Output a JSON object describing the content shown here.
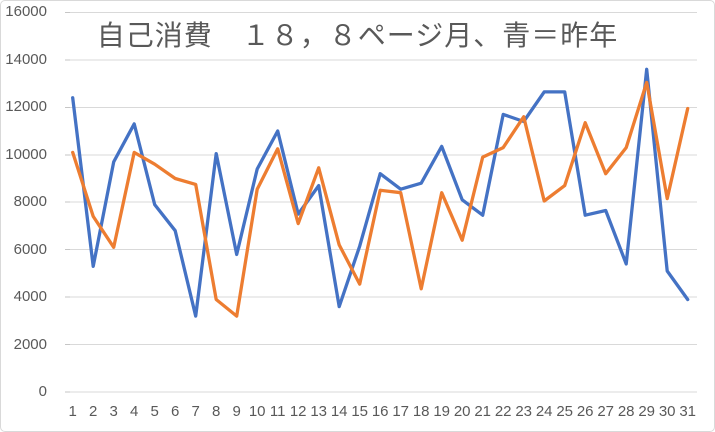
{
  "chart_data": {
    "type": "line",
    "title": "自己消費　１８，８ページ月、青＝昨年",
    "categories": [
      1,
      2,
      3,
      4,
      5,
      6,
      7,
      8,
      9,
      10,
      11,
      12,
      13,
      14,
      15,
      16,
      17,
      18,
      19,
      20,
      21,
      22,
      23,
      24,
      25,
      26,
      27,
      28,
      29,
      30,
      31
    ],
    "xlabel": "",
    "ylabel": "",
    "ylim": [
      0,
      16000
    ],
    "y_ticks": [
      0,
      2000,
      4000,
      6000,
      8000,
      10000,
      12000,
      14000,
      16000
    ],
    "grid": true,
    "legend_position": "none",
    "series": [
      {
        "name": "青＝昨年",
        "color": "#4472C4",
        "values": [
          12400,
          5300,
          9700,
          11300,
          7900,
          6800,
          3200,
          10050,
          5800,
          9400,
          11000,
          7500,
          8700,
          3600,
          6150,
          9200,
          8550,
          8800,
          10350,
          8100,
          7450,
          11700,
          11400,
          12650,
          12650,
          7450,
          7650,
          5400,
          13600,
          5100,
          3900
        ]
      },
      {
        "name": "オレンジ",
        "color": "#ED7D31",
        "values": [
          10100,
          7400,
          6100,
          10100,
          9600,
          9000,
          8750,
          3900,
          3200,
          8550,
          10250,
          7100,
          9450,
          6200,
          4550,
          8500,
          8400,
          4350,
          8400,
          6400,
          9900,
          10300,
          11600,
          8050,
          8700,
          11350,
          9200,
          10300,
          13050,
          8150,
          11950
        ]
      }
    ],
    "colors": {
      "gridline": "#D9D9D9",
      "tick": "#C6C6C6",
      "axis_text": "#595959",
      "border": "#D9D9D9"
    }
  }
}
